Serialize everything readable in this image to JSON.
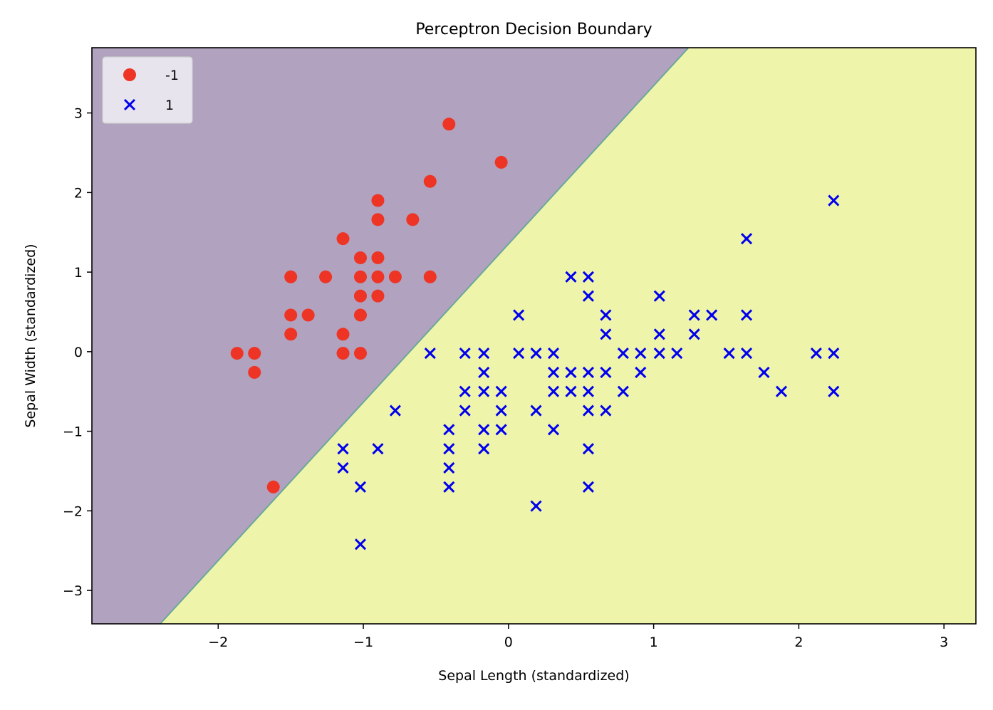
{
  "chart_data": {
    "type": "scatter",
    "title": "Perceptron Decision Boundary",
    "xlabel": "Sepal Length (standardized)",
    "ylabel": "Sepal Width (standardized)",
    "xlim": [
      -2.87,
      3.22
    ],
    "ylim": [
      -3.42,
      3.82
    ],
    "xticks": [
      -2,
      -1,
      0,
      1,
      2,
      3
    ],
    "yticks": [
      -3,
      -2,
      -1,
      0,
      1,
      2,
      3
    ],
    "xtick_labels": [
      "−2",
      "−1",
      "0",
      "1",
      "2",
      "3"
    ],
    "ytick_labels": [
      "−3",
      "−2",
      "−1",
      "0",
      "1",
      "2",
      "3"
    ],
    "grid": false,
    "legend_position": "top-left",
    "decision_boundary": {
      "points": [
        [
          -2.4,
          -3.42
        ],
        [
          1.24,
          3.82
        ]
      ],
      "region_colors": {
        "-1": "#b1a2bf",
        "1": "#eff4ab"
      },
      "line_color": "#6aa89a"
    },
    "series": [
      {
        "name": "-1",
        "marker": "circle",
        "color": "#ee3424",
        "points": [
          [
            -0.41,
            2.86
          ],
          [
            -0.05,
            2.38
          ],
          [
            -0.54,
            2.14
          ],
          [
            -0.9,
            1.9
          ],
          [
            -0.9,
            1.66
          ],
          [
            -0.66,
            1.66
          ],
          [
            -1.14,
            1.42
          ],
          [
            -1.02,
            1.18
          ],
          [
            -0.9,
            1.18
          ],
          [
            -1.5,
            0.94
          ],
          [
            -1.26,
            0.94
          ],
          [
            -1.02,
            0.94
          ],
          [
            -0.9,
            0.94
          ],
          [
            -0.78,
            0.94
          ],
          [
            -0.54,
            0.94
          ],
          [
            -1.02,
            0.7
          ],
          [
            -0.9,
            0.7
          ],
          [
            -1.5,
            0.46
          ],
          [
            -1.38,
            0.46
          ],
          [
            -1.02,
            0.46
          ],
          [
            -1.5,
            0.22
          ],
          [
            -1.14,
            0.22
          ],
          [
            -1.87,
            -0.02
          ],
          [
            -1.75,
            -0.02
          ],
          [
            -1.14,
            -0.02
          ],
          [
            -1.02,
            -0.02
          ],
          [
            -1.75,
            -0.26
          ],
          [
            -1.62,
            -1.7
          ]
        ]
      },
      {
        "name": "1",
        "marker": "x",
        "color": "#0000ee",
        "points": [
          [
            2.24,
            1.9
          ],
          [
            1.64,
            1.42
          ],
          [
            0.43,
            0.94
          ],
          [
            0.55,
            0.94
          ],
          [
            0.55,
            0.7
          ],
          [
            1.04,
            0.7
          ],
          [
            0.07,
            0.46
          ],
          [
            0.67,
            0.46
          ],
          [
            1.28,
            0.46
          ],
          [
            1.4,
            0.46
          ],
          [
            1.64,
            0.46
          ],
          [
            0.67,
            0.22
          ],
          [
            1.04,
            0.22
          ],
          [
            1.28,
            0.22
          ],
          [
            -0.54,
            -0.02
          ],
          [
            -0.3,
            -0.02
          ],
          [
            -0.17,
            -0.02
          ],
          [
            0.07,
            -0.02
          ],
          [
            0.19,
            -0.02
          ],
          [
            0.31,
            -0.02
          ],
          [
            0.79,
            -0.02
          ],
          [
            0.91,
            -0.02
          ],
          [
            1.04,
            -0.02
          ],
          [
            1.16,
            -0.02
          ],
          [
            1.52,
            -0.02
          ],
          [
            1.64,
            -0.02
          ],
          [
            2.12,
            -0.02
          ],
          [
            2.24,
            -0.02
          ],
          [
            -0.17,
            -0.26
          ],
          [
            0.31,
            -0.26
          ],
          [
            0.43,
            -0.26
          ],
          [
            0.55,
            -0.26
          ],
          [
            0.67,
            -0.26
          ],
          [
            0.91,
            -0.26
          ],
          [
            1.76,
            -0.26
          ],
          [
            -0.3,
            -0.5
          ],
          [
            -0.17,
            -0.5
          ],
          [
            -0.05,
            -0.5
          ],
          [
            0.31,
            -0.5
          ],
          [
            0.43,
            -0.5
          ],
          [
            0.55,
            -0.5
          ],
          [
            0.79,
            -0.5
          ],
          [
            1.88,
            -0.5
          ],
          [
            2.24,
            -0.5
          ],
          [
            -0.78,
            -0.74
          ],
          [
            -0.3,
            -0.74
          ],
          [
            -0.05,
            -0.74
          ],
          [
            0.19,
            -0.74
          ],
          [
            0.55,
            -0.74
          ],
          [
            0.67,
            -0.74
          ],
          [
            -0.41,
            -0.98
          ],
          [
            -0.17,
            -0.98
          ],
          [
            -0.05,
            -0.98
          ],
          [
            0.31,
            -0.98
          ],
          [
            -1.14,
            -1.22
          ],
          [
            -0.9,
            -1.22
          ],
          [
            -0.41,
            -1.22
          ],
          [
            -0.17,
            -1.22
          ],
          [
            0.55,
            -1.22
          ],
          [
            -1.14,
            -1.46
          ],
          [
            -0.41,
            -1.46
          ],
          [
            -1.02,
            -1.7
          ],
          [
            -0.41,
            -1.7
          ],
          [
            0.55,
            -1.7
          ],
          [
            0.19,
            -1.94
          ],
          [
            -1.02,
            -2.42
          ]
        ]
      }
    ]
  }
}
